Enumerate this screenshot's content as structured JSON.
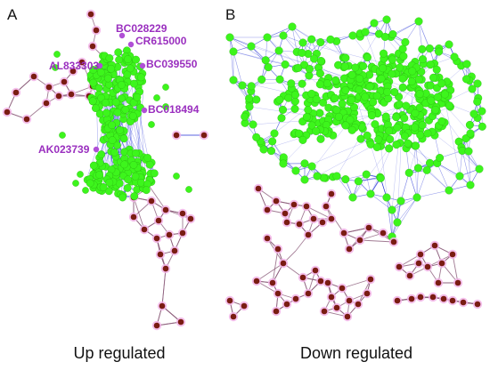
{
  "figure": {
    "panel_a": {
      "letter": "A",
      "caption": "Up regulated",
      "highlighted_genes": [
        "BC028229",
        "CR615000",
        "AL833303",
        "BC039550",
        "BC018494",
        "AK023739"
      ]
    },
    "panel_b": {
      "letter": "B",
      "caption": "Down regulated"
    }
  },
  "colors": {
    "hub_node": "#3df51c",
    "hub_edge": "#2431d6",
    "peripheral_node": "#7a1c12",
    "peripheral_halo": "#f2b4e8",
    "peripheral_edge": "#8a5a78",
    "label_text": "#9a2fbf",
    "label_node": "#b04fd6"
  }
}
